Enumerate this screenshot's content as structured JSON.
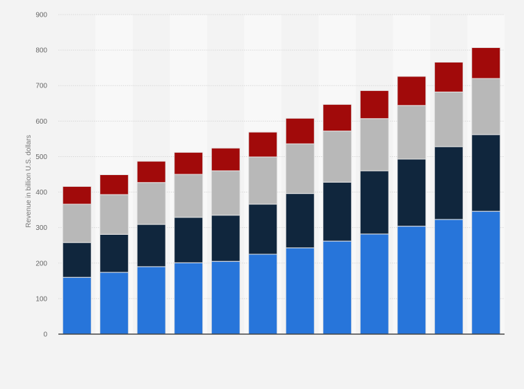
{
  "chart_data": {
    "type": "bar",
    "stacked": true,
    "title": "",
    "xlabel": "",
    "ylabel": "Revenue in billion U.S. dollars",
    "ylim": [
      0,
      900
    ],
    "yticks": [
      0,
      100,
      200,
      300,
      400,
      500,
      600,
      700,
      800,
      900
    ],
    "grid": true,
    "legend": "none",
    "categories": [
      "",
      "",
      "",
      "",
      "",
      "",
      "",
      "",
      "",
      "",
      "",
      ""
    ],
    "series": [
      {
        "color": "#2775da",
        "values": [
          160,
          174,
          190,
          201,
          205,
          225,
          243,
          262,
          282,
          304,
          323,
          346
        ]
      },
      {
        "color": "#10263d",
        "values": [
          98,
          107,
          119,
          128,
          130,
          141,
          153,
          166,
          178,
          189,
          205,
          216
        ]
      },
      {
        "color": "#b8b8b8",
        "values": [
          108,
          112,
          118,
          121,
          125,
          133,
          140,
          144,
          147,
          151,
          154,
          158
        ]
      },
      {
        "color": "#a10a0a",
        "values": [
          50,
          56,
          60,
          62,
          64,
          70,
          72,
          75,
          79,
          82,
          84,
          87
        ]
      }
    ]
  }
}
